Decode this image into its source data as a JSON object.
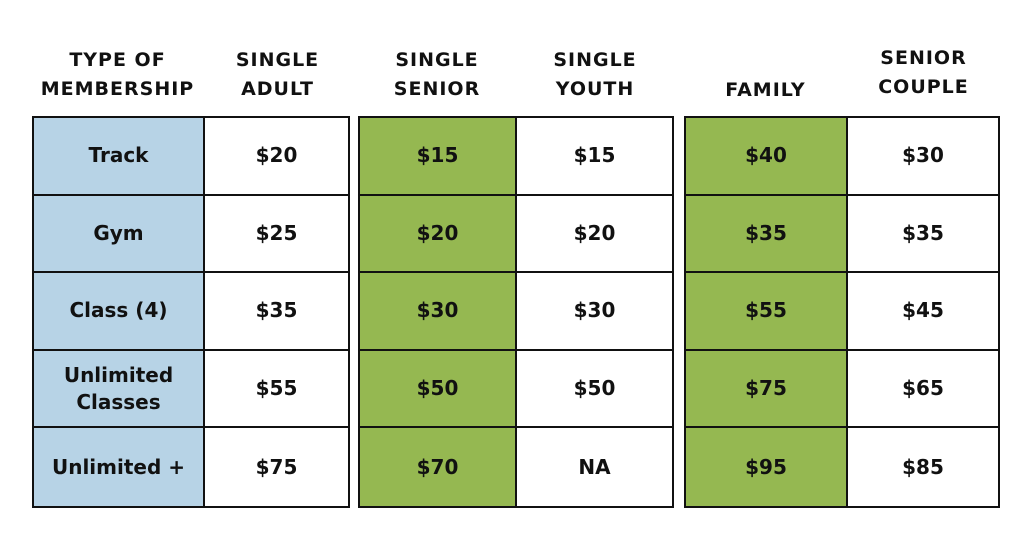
{
  "colors": {
    "type_fill": "#b7d3e6",
    "highlight_fill": "#95b851",
    "border": "#111111"
  },
  "headers": {
    "type": "TYPE OF\nMEMBERSHIP",
    "single_adult": "SINGLE\nADULT",
    "single_senior": "SINGLE\nSENIOR",
    "single_youth": "SINGLE\nYOUTH",
    "family": "FAMILY",
    "senior_couple": "SENIOR\nCOUPLE"
  },
  "rows": [
    {
      "type": "Track",
      "single_adult": "$20",
      "single_senior": "$15",
      "single_youth": "$15",
      "family": "$40",
      "senior_couple": "$30"
    },
    {
      "type": "Gym",
      "single_adult": "$25",
      "single_senior": "$20",
      "single_youth": "$20",
      "family": "$35",
      "senior_couple": "$35"
    },
    {
      "type": "Class (4)",
      "single_adult": "$35",
      "single_senior": "$30",
      "single_youth": "$30",
      "family": "$55",
      "senior_couple": "$45"
    },
    {
      "type": "Unlimited\nClasses",
      "single_adult": "$55",
      "single_senior": "$50",
      "single_youth": "$50",
      "family": "$75",
      "senior_couple": "$65"
    },
    {
      "type": "Unlimited +",
      "single_adult": "$75",
      "single_senior": "$70",
      "single_youth": "NA",
      "family": "$95",
      "senior_couple": "$85"
    }
  ]
}
